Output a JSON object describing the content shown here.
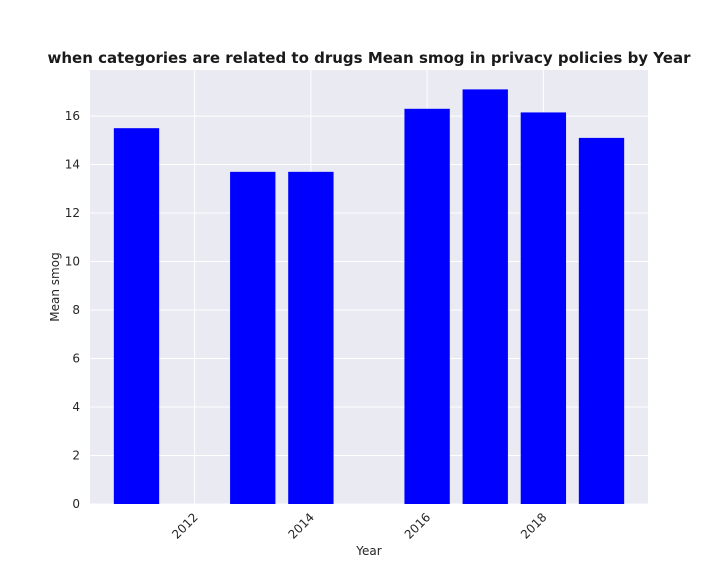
{
  "chart_data": {
    "type": "bar",
    "title": "when categories are related to drugs Mean smog in privacy policies by Year",
    "xlabel": "Year",
    "ylabel": "Mean smog",
    "x": [
      2011,
      2013,
      2014,
      2016,
      2017,
      2018,
      2019
    ],
    "values": [
      15.5,
      13.7,
      13.7,
      16.3,
      17.1,
      16.15,
      15.1
    ],
    "xticks": [
      2012,
      2014,
      2016,
      2018
    ],
    "yticks": [
      0,
      2,
      4,
      6,
      8,
      10,
      12,
      14,
      16
    ],
    "xlim": [
      2010.2,
      2019.8
    ],
    "ylim": [
      0,
      17.9
    ],
    "grid": true,
    "legend": "none",
    "colors": {
      "bar": "#0000ff",
      "plot_background": "#eaeaf2",
      "grid": "#ffffff"
    }
  }
}
